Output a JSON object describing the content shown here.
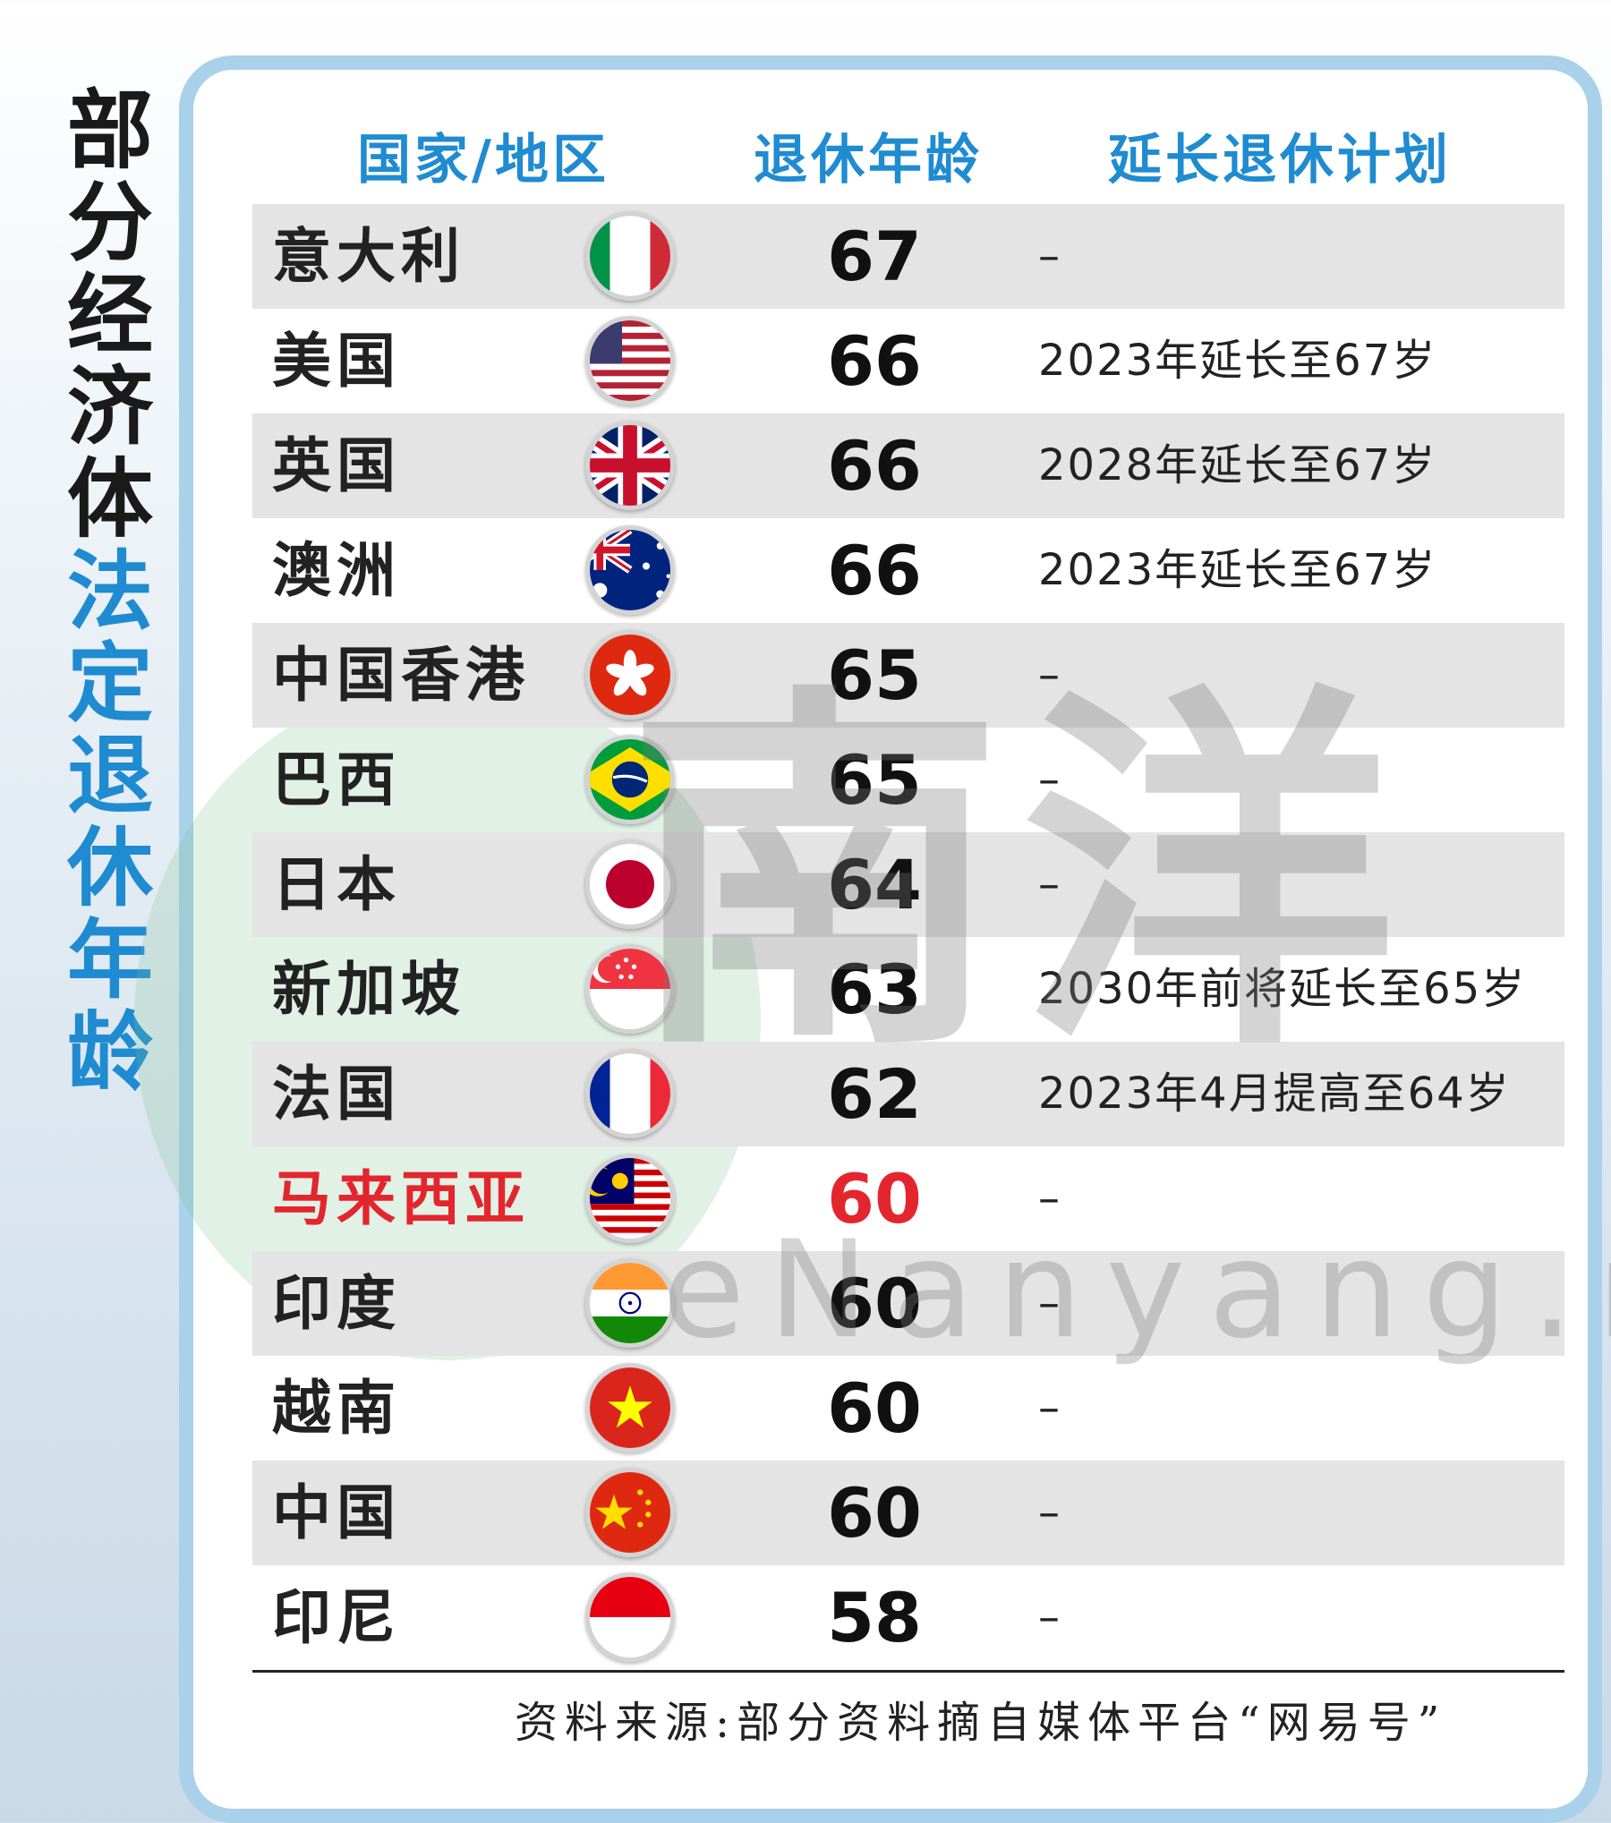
{
  "side_title": {
    "dark": [
      "部",
      "分",
      "经",
      "济",
      "体"
    ],
    "blue": [
      "法",
      "定",
      "退",
      "休",
      "年",
      "龄"
    ]
  },
  "headers": {
    "country": "国家/地区",
    "age": "退休年龄",
    "plan": "延长退休计划"
  },
  "chart_data": {
    "type": "table",
    "columns": [
      "国家/地区",
      "退休年龄",
      "延长退休计划"
    ],
    "rows": [
      {
        "country": "意大利",
        "age": "67",
        "plan": "–",
        "flag": "italy-flag-icon"
      },
      {
        "country": "美国",
        "age": "66",
        "plan": "2023年延长至67岁",
        "flag": "usa-flag-icon"
      },
      {
        "country": "英国",
        "age": "66",
        "plan": "2028年延长至67岁",
        "flag": "uk-flag-icon"
      },
      {
        "country": "澳洲",
        "age": "66",
        "plan": "2023年延长至67岁",
        "flag": "australia-flag-icon"
      },
      {
        "country": "中国香港",
        "age": "65",
        "plan": "–",
        "flag": "hongkong-flag-icon"
      },
      {
        "country": "巴西",
        "age": "65",
        "plan": "–",
        "flag": "brazil-flag-icon"
      },
      {
        "country": "日本",
        "age": "64",
        "plan": "–",
        "flag": "japan-flag-icon"
      },
      {
        "country": "新加坡",
        "age": "63",
        "plan": "2030年前将延长至65岁",
        "flag": "singapore-flag-icon"
      },
      {
        "country": "法国",
        "age": "62",
        "plan": "2023年4月提高至64岁",
        "flag": "france-flag-icon"
      },
      {
        "country": "马来西亚",
        "age": "60",
        "plan": "–",
        "flag": "malaysia-flag-icon",
        "highlight": true
      },
      {
        "country": "印度",
        "age": "60",
        "plan": "–",
        "flag": "india-flag-icon"
      },
      {
        "country": "越南",
        "age": "60",
        "plan": "–",
        "flag": "vietnam-flag-icon"
      },
      {
        "country": "中国",
        "age": "60",
        "plan": "–",
        "flag": "china-flag-icon"
      },
      {
        "country": "印尼",
        "age": "58",
        "plan": "–",
        "flag": "indonesia-flag-icon"
      }
    ]
  },
  "source": "资料来源:部分资料摘自媒体平台“网易号”",
  "watermark": {
    "logo": "南洋",
    "url": "eNanyang.my"
  },
  "colors": {
    "header_blue": "#1f8bd1",
    "highlight_red": "#e3262e",
    "row_shade": "#e4e4e4",
    "panel_border": "#a9d1ea"
  }
}
